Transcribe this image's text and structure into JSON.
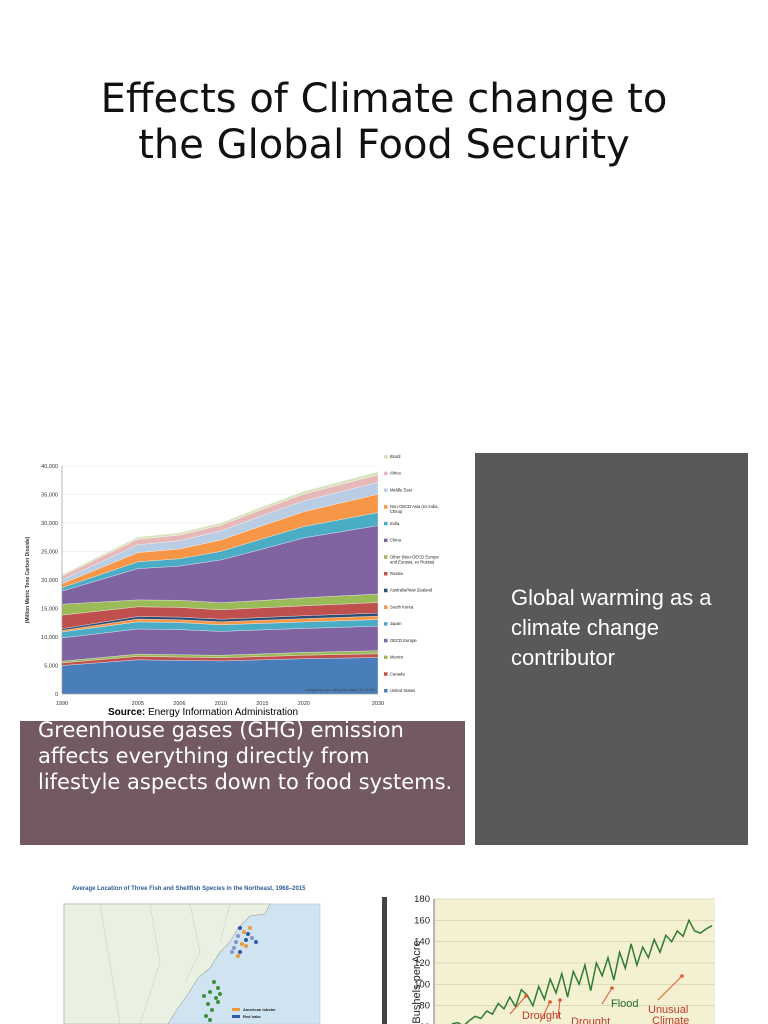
{
  "slide": {
    "title": "Effects of Climate change to the Global Food Security",
    "source_label": "Source:",
    "source_text": " Energy Information Administration",
    "grey_box_text": "Global warming as a climate change contributor",
    "maroon_box_text": "Greenhouse gases (GHG) emission affects everything directly from lifestyle aspects down to food systems."
  },
  "colors": {
    "grey_box": "#595959",
    "maroon_box": "#735a60"
  },
  "chart_data": [
    {
      "type": "area",
      "title": "",
      "ylabel": "(Million Metric Tons Carbon Dioxide)",
      "xlabel": "",
      "x": [
        "1990",
        "2005",
        "2006",
        "2010",
        "2015",
        "2020",
        "2030"
      ],
      "ylim": [
        0,
        40000
      ],
      "yticks": [
        "0",
        "5,000",
        "10,000",
        "15,000",
        "20,000",
        "25,000",
        "30,000",
        "35,000",
        "40,000"
      ],
      "watermark": "mongabay.com using EIA data (Oct 2009)",
      "legend_position": "right",
      "series": [
        {
          "name": "United States",
          "color": "#4a7ebb",
          "values": [
            5000,
            6000,
            5900,
            5800,
            6000,
            6200,
            6400
          ]
        },
        {
          "name": "Canada",
          "color": "#c0504d",
          "values": [
            450,
            600,
            590,
            560,
            580,
            600,
            650
          ]
        },
        {
          "name": "Mexico",
          "color": "#9bbb59",
          "values": [
            300,
            400,
            400,
            430,
            460,
            500,
            550
          ]
        },
        {
          "name": "OECD Europe",
          "color": "#8064a2",
          "values": [
            4100,
            4400,
            4400,
            4200,
            4200,
            4200,
            4300
          ]
        },
        {
          "name": "Japan",
          "color": "#4bacc6",
          "values": [
            1050,
            1250,
            1250,
            1150,
            1150,
            1150,
            1150
          ]
        },
        {
          "name": "South Korea",
          "color": "#f79646",
          "values": [
            250,
            500,
            500,
            520,
            550,
            580,
            620
          ]
        },
        {
          "name": "Australia/New Zealand",
          "color": "#2c4d75",
          "values": [
            300,
            450,
            450,
            460,
            480,
            500,
            530
          ]
        },
        {
          "name": "Russia",
          "color": "#c0504d",
          "values": [
            2400,
            1700,
            1700,
            1650,
            1700,
            1750,
            1850
          ]
        },
        {
          "name": "Other (Non-OECD Europe and Eurasia, ex Russia)",
          "color": "#9bbb59",
          "values": [
            1900,
            1200,
            1250,
            1250,
            1300,
            1400,
            1500
          ]
        },
        {
          "name": "China",
          "color": "#8064a2",
          "values": [
            2300,
            5500,
            6000,
            7500,
            9000,
            10500,
            12000
          ]
        },
        {
          "name": "India",
          "color": "#4bacc6",
          "values": [
            600,
            1200,
            1300,
            1500,
            1800,
            2000,
            2300
          ]
        },
        {
          "name": "Non-OECD Asia (ex India, China)",
          "color": "#f79646",
          "values": [
            700,
            1600,
            1700,
            2000,
            2300,
            2600,
            3200
          ]
        },
        {
          "name": "Middle East",
          "color": "#b9cde5",
          "values": [
            700,
            1400,
            1450,
            1600,
            1800,
            1900,
            2100
          ]
        },
        {
          "name": "Africa",
          "color": "#e6b9b8",
          "values": [
            650,
            950,
            1000,
            1000,
            1100,
            1200,
            1300
          ]
        },
        {
          "name": "Brazil",
          "color": "#d7e4bd",
          "values": [
            250,
            400,
            400,
            420,
            450,
            480,
            550
          ]
        }
      ]
    },
    {
      "type": "line",
      "title": "",
      "ylabel": "Bushels per Acre",
      "ylim": [
        60,
        180
      ],
      "yticks": [
        "180",
        "160",
        "140",
        "120",
        "100",
        "80",
        "60"
      ],
      "annotations": [
        "Drought",
        "Drought",
        "Flood",
        "Unusual Climate"
      ],
      "series": [
        {
          "name": "",
          "color": "#2e7d32",
          "values": [
            63,
            64,
            61,
            66,
            70,
            68,
            75,
            72,
            82,
            77,
            88,
            79,
            95,
            90,
            80,
            98,
            86,
            105,
            92,
            110,
            88,
            112,
            100,
            118,
            94,
            120,
            108,
            125,
            104,
            130,
            115,
            138,
            118,
            135,
            125,
            142,
            130,
            146,
            140,
            150,
            145,
            160,
            150,
            148,
            152,
            155
          ]
        }
      ]
    }
  ],
  "map_chart": {
    "title": "Average Location of Three Fish and Shellfish Species in the Northeast, 1968–2015",
    "legend": [
      "American lobster",
      "Red hake"
    ]
  }
}
